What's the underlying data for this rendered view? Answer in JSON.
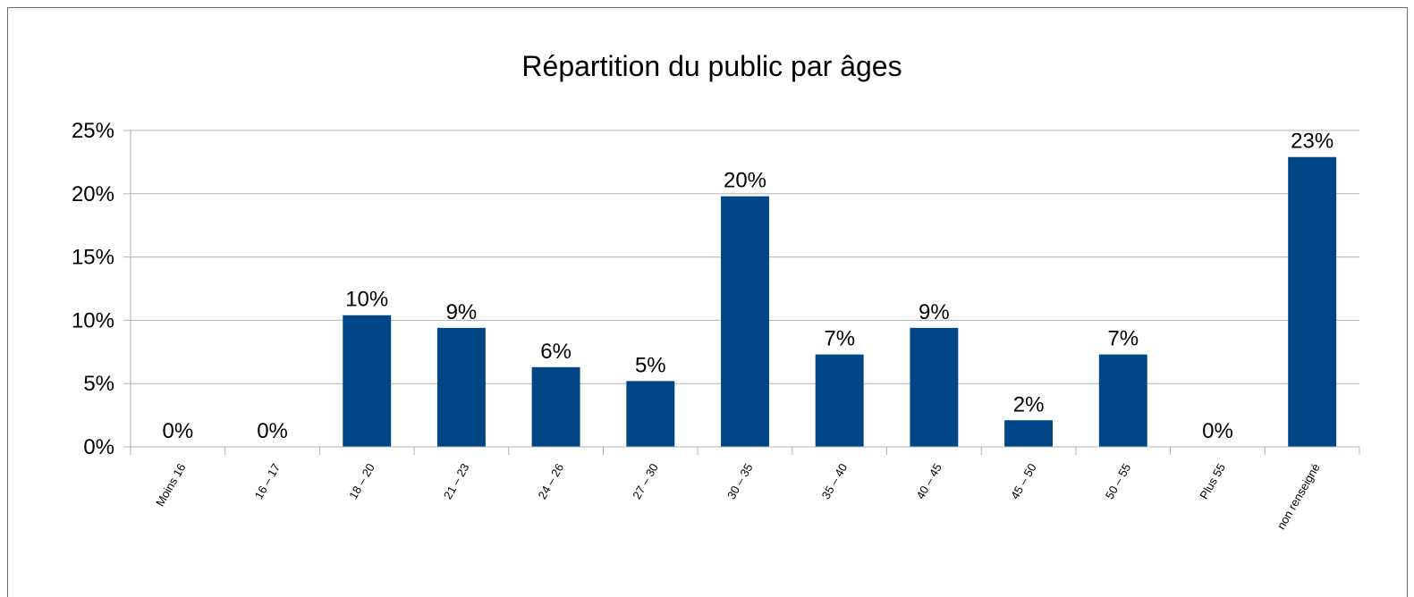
{
  "chart_data": {
    "type": "bar",
    "title": "Répartition du public par âges",
    "categories": [
      "Moins 16",
      "16 – 17",
      "18 – 20",
      "21 – 23",
      "24 – 26",
      "27 – 30",
      "30 – 35",
      "35 – 40",
      "40 – 45",
      "45 – 50",
      "50 – 55",
      "Plus 55",
      "non renseigné"
    ],
    "values": [
      0,
      0,
      10.4,
      9.4,
      6.3,
      5.2,
      19.8,
      7.3,
      9.4,
      2.1,
      7.3,
      0,
      22.9
    ],
    "data_labels": [
      "0%",
      "0%",
      "10%",
      "9%",
      "6%",
      "5%",
      "20%",
      "7%",
      "9%",
      "2%",
      "7%",
      "0%",
      "23%"
    ],
    "yticks": [
      0,
      5,
      10,
      15,
      20,
      25
    ],
    "ytick_labels": [
      "0%",
      "5%",
      "10%",
      "15%",
      "20%",
      "25%"
    ],
    "ylim": [
      0,
      25
    ],
    "xlabel": "",
    "ylabel": "",
    "grid": true,
    "legend": "none",
    "bar_color": "#004586"
  }
}
